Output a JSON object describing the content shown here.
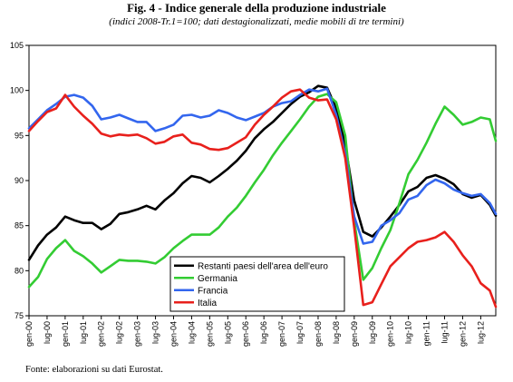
{
  "figure": {
    "title": "Fig. 4 -    Indice generale della produzione industriale",
    "subtitle": "(indici 2008-Tr.1=100; dati destagionalizzati, medie mobili di tre termini)",
    "source": "Fonte: elaborazioni su dati Eurostat."
  },
  "chart_data": {
    "type": "line",
    "ylim": [
      75,
      105
    ],
    "yticks": [
      75,
      80,
      85,
      90,
      95,
      100,
      105
    ],
    "grid": false,
    "legend_position": "bottom-center",
    "x_start": "gen-00",
    "x_end": "dic-12",
    "x_tick_labels": [
      "gen-00",
      "lug-00",
      "gen-01",
      "lug-01",
      "gen-02",
      "lug-02",
      "gen-03",
      "lug-03",
      "gen-04",
      "lug-04",
      "gen-05",
      "lug-05",
      "gen-06",
      "lug-06",
      "gen-07",
      "lug-07",
      "gen-08",
      "lug-08",
      "gen-09",
      "lug-09",
      "gen-10",
      "lug-10",
      "gen-11",
      "lug-11",
      "gen-12",
      "lug-12"
    ],
    "series": [
      {
        "name": "Restanti paesi dell'area dell'euro",
        "color": "#000000",
        "points": [
          [
            "gen-00",
            81.2
          ],
          [
            "apr-00",
            82.8
          ],
          [
            "lug-00",
            84.0
          ],
          [
            "ott-00",
            84.8
          ],
          [
            "gen-01",
            86.0
          ],
          [
            "apr-01",
            85.6
          ],
          [
            "lug-01",
            85.3
          ],
          [
            "ott-01",
            85.3
          ],
          [
            "gen-02",
            84.6
          ],
          [
            "apr-02",
            85.2
          ],
          [
            "lug-02",
            86.3
          ],
          [
            "ott-02",
            86.5
          ],
          [
            "gen-03",
            86.8
          ],
          [
            "apr-03",
            87.2
          ],
          [
            "lug-03",
            86.8
          ],
          [
            "ott-03",
            87.8
          ],
          [
            "gen-04",
            88.6
          ],
          [
            "apr-04",
            89.7
          ],
          [
            "lug-04",
            90.5
          ],
          [
            "ott-04",
            90.3
          ],
          [
            "gen-05",
            89.8
          ],
          [
            "apr-05",
            90.5
          ],
          [
            "lug-05",
            91.3
          ],
          [
            "ott-05",
            92.2
          ],
          [
            "gen-06",
            93.3
          ],
          [
            "apr-06",
            94.7
          ],
          [
            "lug-06",
            95.7
          ],
          [
            "ott-06",
            96.5
          ],
          [
            "gen-07",
            97.5
          ],
          [
            "apr-07",
            98.5
          ],
          [
            "lug-07",
            99.3
          ],
          [
            "ott-07",
            99.8
          ],
          [
            "gen-08",
            100.5
          ],
          [
            "apr-08",
            100.3
          ],
          [
            "lug-08",
            98.0
          ],
          [
            "ott-08",
            94.0
          ],
          [
            "gen-09",
            87.8
          ],
          [
            "apr-09",
            84.3
          ],
          [
            "lug-09",
            83.8
          ],
          [
            "ott-09",
            84.8
          ],
          [
            "gen-10",
            86.0
          ],
          [
            "apr-10",
            87.3
          ],
          [
            "lug-10",
            88.8
          ],
          [
            "ott-10",
            89.3
          ],
          [
            "gen-11",
            90.3
          ],
          [
            "apr-11",
            90.6
          ],
          [
            "lug-11",
            90.2
          ],
          [
            "ott-11",
            89.6
          ],
          [
            "gen-12",
            88.5
          ],
          [
            "apr-12",
            88.1
          ],
          [
            "lug-12",
            88.4
          ],
          [
            "ott-12",
            87.3
          ],
          [
            "dic-12",
            86.1
          ]
        ]
      },
      {
        "name": "Germania",
        "color": "#33cc33",
        "points": [
          [
            "gen-00",
            78.2
          ],
          [
            "apr-00",
            79.3
          ],
          [
            "lug-00",
            81.3
          ],
          [
            "ott-00",
            82.5
          ],
          [
            "gen-01",
            83.4
          ],
          [
            "apr-01",
            82.2
          ],
          [
            "lug-01",
            81.6
          ],
          [
            "ott-01",
            80.8
          ],
          [
            "gen-02",
            79.8
          ],
          [
            "apr-02",
            80.5
          ],
          [
            "lug-02",
            81.2
          ],
          [
            "ott-02",
            81.1
          ],
          [
            "gen-03",
            81.1
          ],
          [
            "apr-03",
            81.0
          ],
          [
            "lug-03",
            80.8
          ],
          [
            "ott-03",
            81.5
          ],
          [
            "gen-04",
            82.5
          ],
          [
            "apr-04",
            83.3
          ],
          [
            "lug-04",
            84.0
          ],
          [
            "ott-04",
            84.0
          ],
          [
            "gen-05",
            84.0
          ],
          [
            "apr-05",
            84.8
          ],
          [
            "lug-05",
            86.0
          ],
          [
            "ott-05",
            87.0
          ],
          [
            "gen-06",
            88.3
          ],
          [
            "apr-06",
            89.8
          ],
          [
            "lug-06",
            91.2
          ],
          [
            "ott-06",
            92.8
          ],
          [
            "gen-07",
            94.2
          ],
          [
            "apr-07",
            95.5
          ],
          [
            "lug-07",
            96.8
          ],
          [
            "ott-07",
            98.2
          ],
          [
            "gen-08",
            99.3
          ],
          [
            "apr-08",
            99.6
          ],
          [
            "lug-08",
            98.7
          ],
          [
            "ott-08",
            95.0
          ],
          [
            "gen-09",
            85.5
          ],
          [
            "apr-09",
            79.0
          ],
          [
            "lug-09",
            80.3
          ],
          [
            "ott-09",
            82.5
          ],
          [
            "gen-10",
            84.5
          ],
          [
            "apr-10",
            87.5
          ],
          [
            "lug-10",
            90.7
          ],
          [
            "ott-10",
            92.3
          ],
          [
            "gen-11",
            94.2
          ],
          [
            "apr-11",
            96.3
          ],
          [
            "lug-11",
            98.2
          ],
          [
            "ott-11",
            97.3
          ],
          [
            "gen-12",
            96.2
          ],
          [
            "apr-12",
            96.5
          ],
          [
            "lug-12",
            97.0
          ],
          [
            "ott-12",
            96.8
          ],
          [
            "dic-12",
            94.4
          ]
        ]
      },
      {
        "name": "Francia",
        "color": "#3366ee",
        "points": [
          [
            "gen-00",
            95.8
          ],
          [
            "apr-00",
            96.8
          ],
          [
            "lug-00",
            97.8
          ],
          [
            "ott-00",
            98.5
          ],
          [
            "gen-01",
            99.3
          ],
          [
            "apr-01",
            99.5
          ],
          [
            "lug-01",
            99.2
          ],
          [
            "ott-01",
            98.3
          ],
          [
            "gen-02",
            96.8
          ],
          [
            "apr-02",
            97.0
          ],
          [
            "lug-02",
            97.3
          ],
          [
            "ott-02",
            96.9
          ],
          [
            "gen-03",
            96.5
          ],
          [
            "apr-03",
            96.5
          ],
          [
            "lug-03",
            95.5
          ],
          [
            "ott-03",
            95.8
          ],
          [
            "gen-04",
            96.2
          ],
          [
            "apr-04",
            97.2
          ],
          [
            "lug-04",
            97.3
          ],
          [
            "ott-04",
            97.0
          ],
          [
            "gen-05",
            97.2
          ],
          [
            "apr-05",
            97.8
          ],
          [
            "lug-05",
            97.5
          ],
          [
            "ott-05",
            97.0
          ],
          [
            "gen-06",
            96.7
          ],
          [
            "apr-06",
            97.1
          ],
          [
            "lug-06",
            97.5
          ],
          [
            "ott-06",
            98.2
          ],
          [
            "gen-07",
            98.6
          ],
          [
            "apr-07",
            98.8
          ],
          [
            "lug-07",
            99.5
          ],
          [
            "ott-07",
            100.1
          ],
          [
            "gen-08",
            99.9
          ],
          [
            "apr-08",
            100.2
          ],
          [
            "lug-08",
            97.3
          ],
          [
            "ott-08",
            93.0
          ],
          [
            "gen-09",
            86.0
          ],
          [
            "apr-09",
            83.0
          ],
          [
            "lug-09",
            83.2
          ],
          [
            "ott-09",
            85.0
          ],
          [
            "gen-10",
            85.6
          ],
          [
            "apr-10",
            86.4
          ],
          [
            "lug-10",
            87.9
          ],
          [
            "ott-10",
            88.3
          ],
          [
            "gen-11",
            89.5
          ],
          [
            "apr-11",
            90.1
          ],
          [
            "lug-11",
            89.7
          ],
          [
            "ott-11",
            89.0
          ],
          [
            "gen-12",
            88.6
          ],
          [
            "apr-12",
            88.3
          ],
          [
            "lug-12",
            88.5
          ],
          [
            "ott-12",
            87.5
          ],
          [
            "dic-12",
            86.3
          ]
        ]
      },
      {
        "name": "Italia",
        "color": "#e8201c",
        "points": [
          [
            "gen-00",
            95.5
          ],
          [
            "apr-00",
            96.6
          ],
          [
            "lug-00",
            97.6
          ],
          [
            "ott-00",
            98.0
          ],
          [
            "gen-01",
            99.5
          ],
          [
            "apr-01",
            98.2
          ],
          [
            "lug-01",
            97.2
          ],
          [
            "ott-01",
            96.3
          ],
          [
            "gen-02",
            95.2
          ],
          [
            "apr-02",
            94.9
          ],
          [
            "lug-02",
            95.1
          ],
          [
            "ott-02",
            95.0
          ],
          [
            "gen-03",
            95.1
          ],
          [
            "apr-03",
            94.7
          ],
          [
            "lug-03",
            94.1
          ],
          [
            "ott-03",
            94.3
          ],
          [
            "gen-04",
            94.9
          ],
          [
            "apr-04",
            95.1
          ],
          [
            "lug-04",
            94.2
          ],
          [
            "ott-04",
            94.0
          ],
          [
            "gen-05",
            93.5
          ],
          [
            "apr-05",
            93.4
          ],
          [
            "lug-05",
            93.6
          ],
          [
            "ott-05",
            94.2
          ],
          [
            "gen-06",
            94.8
          ],
          [
            "apr-06",
            96.2
          ],
          [
            "lug-06",
            97.3
          ],
          [
            "ott-06",
            98.2
          ],
          [
            "gen-07",
            99.2
          ],
          [
            "apr-07",
            99.9
          ],
          [
            "lug-07",
            100.1
          ],
          [
            "ott-07",
            99.2
          ],
          [
            "gen-08",
            98.9
          ],
          [
            "apr-08",
            99.0
          ],
          [
            "lug-08",
            96.8
          ],
          [
            "ott-08",
            92.5
          ],
          [
            "gen-09",
            84.8
          ],
          [
            "apr-09",
            76.2
          ],
          [
            "lug-09",
            76.5
          ],
          [
            "ott-09",
            78.5
          ],
          [
            "gen-10",
            80.5
          ],
          [
            "apr-10",
            81.5
          ],
          [
            "lug-10",
            82.5
          ],
          [
            "ott-10",
            83.2
          ],
          [
            "gen-11",
            83.4
          ],
          [
            "apr-11",
            83.7
          ],
          [
            "lug-11",
            84.3
          ],
          [
            "ott-11",
            83.2
          ],
          [
            "gen-12",
            81.7
          ],
          [
            "apr-12",
            80.5
          ],
          [
            "lug-12",
            78.6
          ],
          [
            "ott-12",
            77.8
          ],
          [
            "dic-12",
            76.0
          ]
        ]
      }
    ]
  }
}
